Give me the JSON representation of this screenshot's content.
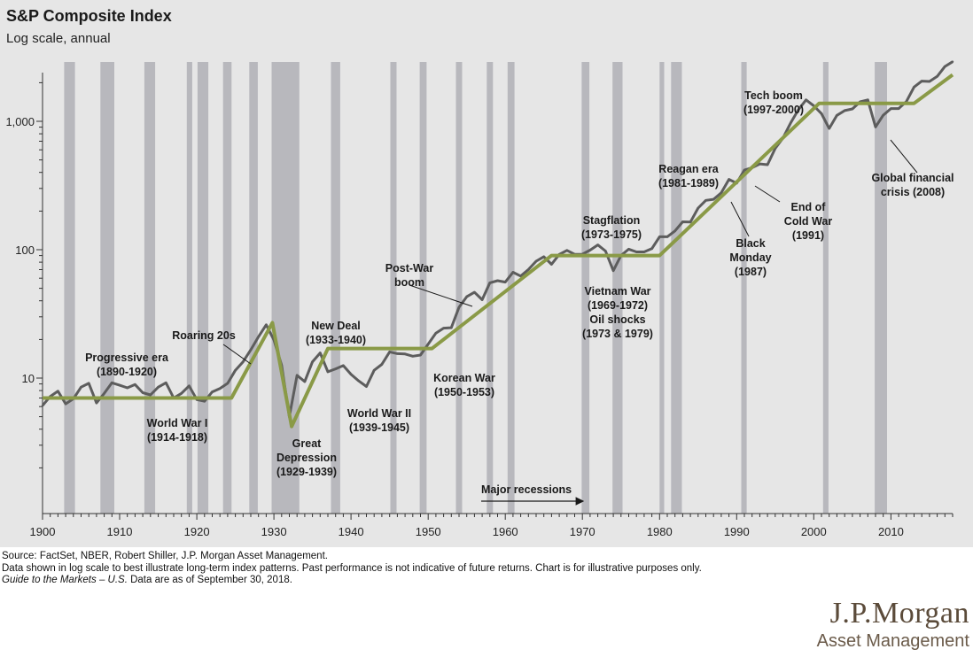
{
  "header": {
    "title": "S&P Composite Index",
    "subtitle": "Log scale, annual"
  },
  "chart_data": {
    "type": "line",
    "title": "S&P Composite Index",
    "subtitle": "Log scale, annual",
    "y_scale": "log",
    "xlim": [
      1900,
      2018
    ],
    "ylim": [
      1,
      2800
    ],
    "x_ticks": [
      1900,
      1910,
      1920,
      1930,
      1940,
      1950,
      1960,
      1970,
      1980,
      1990,
      2000,
      2010
    ],
    "y_ticks": [
      {
        "value": 10,
        "label": "10"
      },
      {
        "value": 100,
        "label": "100"
      },
      {
        "value": 1000,
        "label": "1,000"
      }
    ],
    "recessions": [
      [
        1902.8,
        1904.2
      ],
      [
        1907.5,
        1909.3
      ],
      [
        1913.2,
        1914.6
      ],
      [
        1918.7,
        1919.4
      ],
      [
        1920.1,
        1921.5
      ],
      [
        1923.4,
        1924.5
      ],
      [
        1926.8,
        1927.9
      ],
      [
        1929.7,
        1933.3
      ],
      [
        1937.4,
        1938.6
      ],
      [
        1945.1,
        1945.9
      ],
      [
        1948.9,
        1949.8
      ],
      [
        1953.6,
        1954.4
      ],
      [
        1957.6,
        1958.4
      ],
      [
        1960.3,
        1961.2
      ],
      [
        1969.9,
        1970.9
      ],
      [
        1973.9,
        1975.2
      ],
      [
        1980.0,
        1980.6
      ],
      [
        1981.5,
        1982.9
      ],
      [
        1990.6,
        1991.3
      ],
      [
        2001.2,
        2001.9
      ],
      [
        2007.9,
        2009.5
      ]
    ],
    "series": [
      {
        "name": "S&P Composite Index",
        "x": [
          1900,
          1901,
          1902,
          1903,
          1904,
          1905,
          1906,
          1907,
          1908,
          1909,
          1910,
          1911,
          1912,
          1913,
          1914,
          1915,
          1916,
          1917,
          1918,
          1919,
          1920,
          1921,
          1922,
          1923,
          1924,
          1925,
          1926,
          1927,
          1928,
          1929,
          1930,
          1931,
          1932,
          1933,
          1934,
          1935,
          1936,
          1937,
          1938,
          1939,
          1940,
          1941,
          1942,
          1943,
          1944,
          1945,
          1946,
          1947,
          1948,
          1949,
          1950,
          1951,
          1952,
          1953,
          1954,
          1955,
          1956,
          1957,
          1958,
          1959,
          1960,
          1961,
          1962,
          1963,
          1964,
          1965,
          1966,
          1967,
          1968,
          1969,
          1970,
          1971,
          1972,
          1973,
          1974,
          1975,
          1976,
          1977,
          1978,
          1979,
          1980,
          1981,
          1982,
          1983,
          1984,
          1985,
          1986,
          1987,
          1988,
          1989,
          1990,
          1991,
          1992,
          1993,
          1994,
          1995,
          1996,
          1997,
          1998,
          1999,
          2000,
          2001,
          2002,
          2003,
          2004,
          2005,
          2006,
          2007,
          2008,
          2009,
          2010,
          2011,
          2012,
          2013,
          2014,
          2015,
          2016,
          2017,
          2018
        ],
        "values": [
          6.1,
          7.2,
          7.9,
          6.3,
          6.9,
          8.5,
          9.1,
          6.4,
          7.6,
          9.2,
          8.8,
          8.4,
          8.9,
          7.7,
          7.4,
          8.5,
          9.2,
          7.0,
          7.6,
          8.7,
          6.8,
          6.6,
          7.8,
          8.3,
          9.1,
          11.5,
          13.4,
          16.6,
          21.0,
          26.0,
          19.8,
          12.6,
          5.0,
          10.5,
          9.4,
          13.4,
          15.7,
          11.2,
          11.8,
          12.5,
          10.7,
          9.5,
          8.6,
          11.5,
          12.8,
          16.0,
          15.5,
          15.4,
          14.8,
          15.1,
          18.4,
          22.4,
          24.5,
          24.7,
          35.6,
          43.0,
          46.6,
          40.8,
          55.2,
          57.4,
          55.9,
          66.7,
          62.3,
          70.1,
          81.4,
          88.2,
          77.0,
          92.0,
          98.7,
          92.1,
          92.2,
          99.2,
          109.0,
          97.6,
          68.6,
          90.2,
          101.0,
          96.1,
          96.1,
          102.0,
          126.0,
          126.0,
          140.0,
          165.0,
          164.0,
          211.0,
          242.0,
          247.0,
          277.0,
          353.0,
          330.0,
          417.0,
          435.0,
          466.0,
          459.0,
          615.0,
          740.0,
          970.0,
          1229.0,
          1469.0,
          1320.0,
          1148.0,
          880.0,
          1112.0,
          1211.0,
          1248.0,
          1418.0,
          1468.0,
          903.0,
          1115.0,
          1257.0,
          1257.0,
          1426.0,
          1848.0,
          2058.0,
          2043.0,
          2238.0,
          2673.0,
          2910.0
        ]
      },
      {
        "name": "Secular trend",
        "x": [
          1900,
          1924.5,
          1929.8,
          1932.3,
          1937,
          1950.5,
          1966,
          1980,
          2000.7,
          2013,
          2018
        ],
        "values": [
          7,
          7,
          27,
          4.2,
          17,
          17,
          90,
          90,
          1380,
          1380,
          2300
        ]
      }
    ],
    "annotations": [
      {
        "lines": [
          "Progressive era",
          "(1890-1920)"
        ]
      },
      {
        "lines": [
          "World War I",
          "(1914-1918)"
        ]
      },
      {
        "lines": [
          "Roaring 20s"
        ]
      },
      {
        "lines": [
          "Great",
          "Depression",
          "(1929-1939)"
        ]
      },
      {
        "lines": [
          "New Deal",
          "(1933-1940)"
        ]
      },
      {
        "lines": [
          "World War II",
          "(1939-1945)"
        ]
      },
      {
        "lines": [
          "Post-War",
          "boom"
        ]
      },
      {
        "lines": [
          "Korean War",
          "(1950-1953)"
        ]
      },
      {
        "lines": [
          "Stagflation",
          "(1973-1975)"
        ]
      },
      {
        "lines": [
          "Vietnam War",
          "(1969-1972)",
          "Oil shocks",
          "(1973 & 1979)"
        ]
      },
      {
        "lines": [
          "Reagan era",
          "(1981-1989)"
        ]
      },
      {
        "lines": [
          "Black",
          "Monday",
          "(1987)"
        ]
      },
      {
        "lines": [
          "End of",
          "Cold War",
          "(1991)"
        ]
      },
      {
        "lines": [
          "Tech boom",
          "(1997-2000)"
        ]
      },
      {
        "lines": [
          "Global financial",
          "crisis (2008)"
        ]
      }
    ],
    "recession_label": "Major recessions",
    "colors": {
      "panel": "#e6e6e6",
      "recession": "#b8b8bd",
      "index_line": "#5d5d5d",
      "trend_line": "#8a9a47"
    }
  },
  "footnotes": {
    "source": "Source: FactSet, NBER, Robert Shiller, J.P. Morgan Asset Management.",
    "note": "Data shown in log scale to best illustrate long-term index patterns. Past performance is not indicative of future returns. Chart is for illustrative purposes only.",
    "guide_italic": "Guide to the Markets – U.S.",
    "guide_rest": " Data are as of September 30, 2018."
  },
  "logo": {
    "name": "J.P.Morgan",
    "sub": "Asset Management"
  }
}
